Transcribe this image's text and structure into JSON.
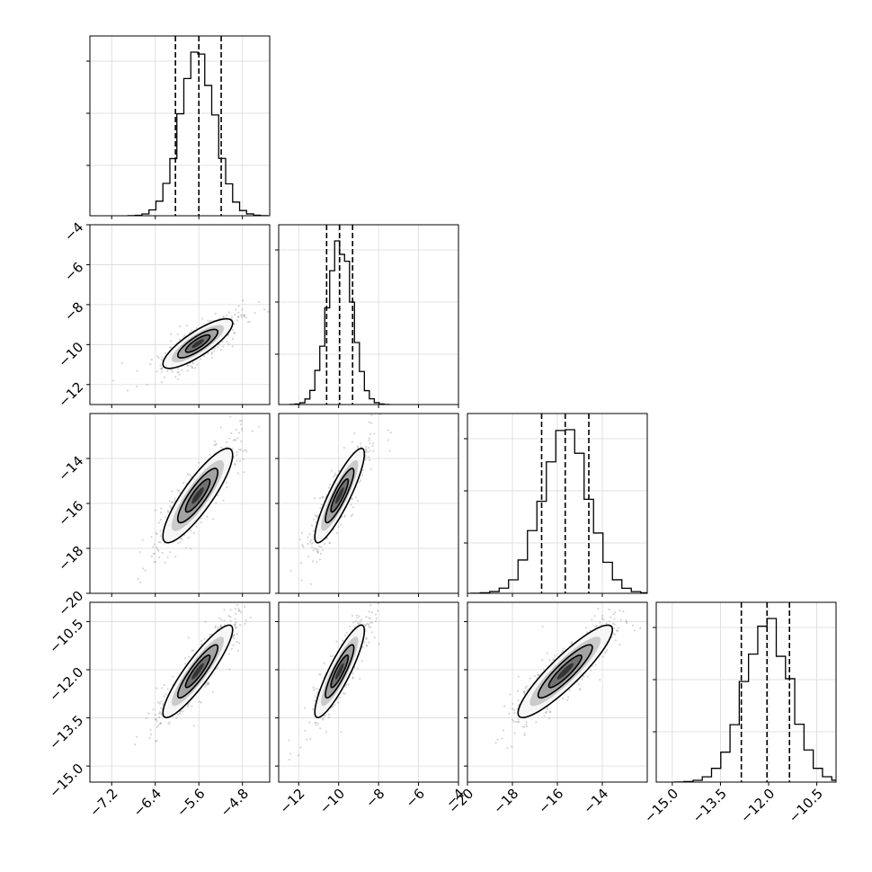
{
  "chart_data": {
    "type": "corner",
    "title": "",
    "parameters": [
      {
        "range": [
          -7.6,
          -4.3
        ],
        "ticks": [
          -7.2,
          -6.4,
          -5.6,
          -4.8
        ],
        "tick_labels": [
          "−7.2",
          "−6.4",
          "−5.6",
          "−4.8"
        ],
        "mean": -5.62,
        "sigma": 0.32,
        "quantiles": [
          -6.03,
          -5.6,
          -5.19
        ]
      },
      {
        "range": [
          -13.0,
          -4.0
        ],
        "ticks": [
          -12,
          -10,
          -8,
          -6,
          -4
        ],
        "tick_labels": [
          "−12",
          "−10",
          "−8",
          "−6",
          "−4"
        ],
        "mean": -9.95,
        "sigma": 0.62,
        "quantiles": [
          -10.6,
          -9.95,
          -9.3
        ]
      },
      {
        "range": [
          -20.0,
          -12.0
        ],
        "ticks": [
          -20,
          -18,
          -16,
          -14
        ],
        "tick_labels": [
          "−20",
          "−18",
          "−16",
          "−14"
        ],
        "mean": -15.65,
        "sigma": 1.05,
        "quantiles": [
          -16.7,
          -15.65,
          -14.6
        ]
      },
      {
        "range": [
          -15.5,
          -9.9
        ],
        "ticks": [
          -15.0,
          -13.5,
          -12.0,
          -10.5
        ],
        "tick_labels": [
          "−15.0",
          "−13.5",
          "−12.0",
          "−10.5"
        ],
        "mean": -12.05,
        "sigma": 0.72,
        "quantiles": [
          -12.85,
          -12.05,
          -11.35
        ]
      }
    ],
    "correlations": [
      [
        1.0,
        0.82,
        0.86,
        0.9
      ],
      [
        0.82,
        1.0,
        0.88,
        0.88
      ],
      [
        0.86,
        0.88,
        1.0,
        0.9
      ],
      [
        0.9,
        0.88,
        0.9,
        1.0
      ]
    ],
    "grid": true
  }
}
